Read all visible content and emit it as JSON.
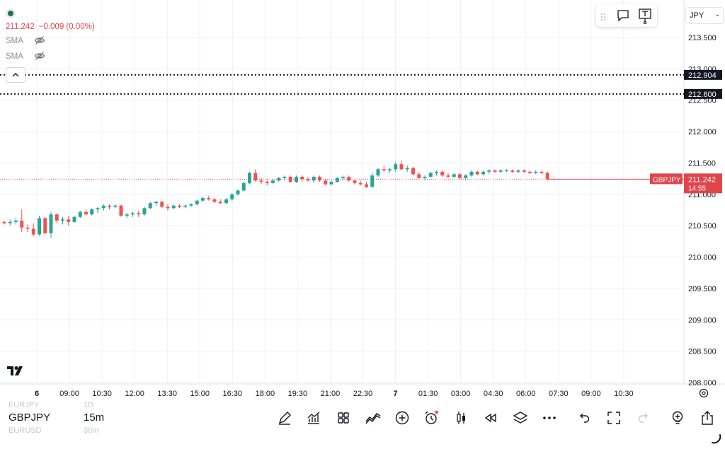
{
  "colors": {
    "up": "#26a69a",
    "down": "#ef5350",
    "price_line": "#e0454c",
    "dark_label": "#131722",
    "grid": "#eef0f3"
  },
  "legend": {
    "price": "211.242",
    "change": "−0.009 (0.00%)",
    "indicators": [
      {
        "label": "SMA",
        "icon": "eye-off-icon"
      },
      {
        "label": "SMA",
        "icon": "eye-off-icon"
      }
    ]
  },
  "top_toolbar": {
    "icons": [
      "drag-handle-icon",
      "comment-icon",
      "text-note-icon"
    ]
  },
  "currency": {
    "value": "JPY"
  },
  "price_axis": {
    "ticks": [
      "213.500",
      "213.000",
      "212.500",
      "212.000",
      "211.500",
      "211.000",
      "210.500",
      "210.000",
      "209.500",
      "209.000",
      "208.500",
      "208.000"
    ],
    "tick_values": [
      213.5,
      213.0,
      212.5,
      212.0,
      211.5,
      211.0,
      210.5,
      210.0,
      209.5,
      209.0,
      208.5,
      208.0
    ],
    "alert_levels": [
      {
        "label": "212.904",
        "value": 212.904
      },
      {
        "label": "212.600",
        "value": 212.6
      }
    ],
    "current": {
      "symbol": "GBPJPY",
      "price": "211.242",
      "countdown": "14:55",
      "value": 211.242
    }
  },
  "time_axis": {
    "labels": [
      "6",
      "09:00",
      "10:30",
      "12:00",
      "13:30",
      "15:00",
      "16:30",
      "18:00",
      "19:30",
      "21:00",
      "22:30",
      "7",
      "01:30",
      "03:00",
      "04:30",
      "06:00",
      "07:30",
      "09:00",
      "10:30"
    ]
  },
  "chart_data": {
    "type": "candlestick",
    "symbol": "GBPJPY",
    "interval": "15m",
    "ylim": [
      208.0,
      213.6
    ],
    "candles": [
      [
        210.56,
        210.58,
        210.52,
        210.54
      ],
      [
        210.54,
        210.6,
        210.5,
        210.56
      ],
      [
        210.56,
        210.62,
        210.52,
        210.58
      ],
      [
        210.58,
        210.76,
        210.4,
        210.47
      ],
      [
        210.47,
        210.52,
        210.4,
        210.45
      ],
      [
        210.45,
        210.54,
        210.33,
        210.36
      ],
      [
        210.36,
        210.66,
        210.34,
        210.62
      ],
      [
        210.62,
        210.64,
        210.36,
        210.38
      ],
      [
        210.38,
        210.72,
        210.3,
        210.68
      ],
      [
        210.68,
        210.7,
        210.54,
        210.58
      ],
      [
        210.58,
        210.64,
        210.52,
        210.6
      ],
      [
        210.6,
        210.66,
        210.5,
        210.56
      ],
      [
        210.56,
        210.66,
        210.54,
        210.64
      ],
      [
        210.64,
        210.74,
        210.62,
        210.72
      ],
      [
        210.72,
        210.76,
        210.66,
        210.68
      ],
      [
        210.68,
        210.78,
        210.66,
        210.76
      ],
      [
        210.76,
        210.8,
        210.7,
        210.78
      ],
      [
        210.78,
        210.84,
        210.74,
        210.82
      ],
      [
        210.82,
        210.84,
        210.76,
        210.8
      ],
      [
        210.8,
        210.84,
        210.78,
        210.82
      ],
      [
        210.82,
        210.84,
        210.64,
        210.66
      ],
      [
        210.66,
        210.7,
        210.62,
        210.68
      ],
      [
        210.68,
        210.72,
        210.64,
        210.7
      ],
      [
        210.7,
        210.74,
        210.64,
        210.68
      ],
      [
        210.68,
        210.8,
        210.66,
        210.78
      ],
      [
        210.78,
        210.88,
        210.76,
        210.86
      ],
      [
        210.86,
        210.9,
        210.82,
        210.88
      ],
      [
        210.88,
        210.9,
        210.78,
        210.8
      ],
      [
        210.8,
        210.84,
        210.74,
        210.78
      ],
      [
        210.78,
        210.84,
        210.76,
        210.82
      ],
      [
        210.82,
        210.84,
        210.78,
        210.8
      ],
      [
        210.8,
        210.84,
        210.78,
        210.82
      ],
      [
        210.82,
        210.86,
        210.8,
        210.84
      ],
      [
        210.84,
        210.92,
        210.82,
        210.9
      ],
      [
        210.9,
        210.96,
        210.88,
        210.94
      ],
      [
        210.94,
        210.98,
        210.9,
        210.92
      ],
      [
        210.92,
        210.94,
        210.86,
        210.88
      ],
      [
        210.88,
        210.92,
        210.84,
        210.86
      ],
      [
        210.86,
        210.94,
        210.84,
        210.92
      ],
      [
        210.92,
        211.02,
        210.9,
        211.0
      ],
      [
        211.0,
        211.08,
        210.98,
        211.06
      ],
      [
        211.06,
        211.2,
        211.04,
        211.18
      ],
      [
        211.18,
        211.36,
        211.16,
        211.34
      ],
      [
        211.34,
        211.4,
        211.2,
        211.22
      ],
      [
        211.22,
        211.26,
        211.16,
        211.2
      ],
      [
        211.2,
        211.24,
        211.14,
        211.18
      ],
      [
        211.18,
        211.24,
        211.16,
        211.22
      ],
      [
        211.22,
        211.28,
        211.2,
        211.26
      ],
      [
        211.26,
        211.3,
        211.22,
        211.28
      ],
      [
        211.28,
        211.3,
        211.18,
        211.2
      ],
      [
        211.2,
        211.3,
        211.18,
        211.28
      ],
      [
        211.28,
        211.3,
        211.2,
        211.24
      ],
      [
        211.24,
        211.28,
        211.2,
        211.22
      ],
      [
        211.22,
        211.3,
        211.18,
        211.28
      ],
      [
        211.28,
        211.3,
        211.2,
        211.22
      ],
      [
        211.22,
        211.24,
        211.14,
        211.16
      ],
      [
        211.16,
        211.22,
        211.14,
        211.2
      ],
      [
        211.2,
        211.28,
        211.18,
        211.26
      ],
      [
        211.26,
        211.3,
        211.22,
        211.28
      ],
      [
        211.28,
        211.3,
        211.2,
        211.22
      ],
      [
        211.22,
        211.24,
        211.16,
        211.18
      ],
      [
        211.18,
        211.22,
        211.14,
        211.16
      ],
      [
        211.16,
        211.2,
        211.1,
        211.12
      ],
      [
        211.12,
        211.34,
        211.1,
        211.3
      ],
      [
        211.3,
        211.42,
        211.28,
        211.4
      ],
      [
        211.4,
        211.46,
        211.36,
        211.38
      ],
      [
        211.38,
        211.42,
        211.34,
        211.4
      ],
      [
        211.4,
        211.52,
        211.36,
        211.48
      ],
      [
        211.48,
        211.54,
        211.38,
        211.4
      ],
      [
        211.4,
        211.46,
        211.36,
        211.42
      ],
      [
        211.42,
        211.44,
        211.3,
        211.32
      ],
      [
        211.32,
        211.36,
        211.24,
        211.26
      ],
      [
        211.26,
        211.3,
        211.22,
        211.28
      ],
      [
        211.28,
        211.36,
        211.26,
        211.34
      ],
      [
        211.34,
        211.38,
        211.3,
        211.36
      ],
      [
        211.36,
        211.38,
        211.28,
        211.3
      ],
      [
        211.3,
        211.34,
        211.26,
        211.28
      ],
      [
        211.28,
        211.34,
        211.26,
        211.32
      ],
      [
        211.32,
        211.34,
        211.24,
        211.26
      ],
      [
        211.26,
        211.32,
        211.22,
        211.3
      ],
      [
        211.3,
        211.38,
        211.28,
        211.36
      ],
      [
        211.36,
        211.38,
        211.3,
        211.32
      ],
      [
        211.32,
        211.38,
        211.3,
        211.36
      ],
      [
        211.36,
        211.4,
        211.32,
        211.38
      ],
      [
        211.38,
        211.4,
        211.34,
        211.36
      ],
      [
        211.36,
        211.4,
        211.34,
        211.38
      ],
      [
        211.38,
        211.4,
        211.36,
        211.38
      ],
      [
        211.38,
        211.4,
        211.34,
        211.36
      ],
      [
        211.36,
        211.4,
        211.34,
        211.38
      ],
      [
        211.38,
        211.4,
        211.34,
        211.36
      ],
      [
        211.36,
        211.38,
        211.32,
        211.34
      ],
      [
        211.34,
        211.38,
        211.32,
        211.36
      ],
      [
        211.36,
        211.38,
        211.32,
        211.34
      ],
      [
        211.34,
        211.36,
        211.22,
        211.242
      ]
    ]
  },
  "bottom_bar": {
    "symbols": {
      "prev": "EURJPY",
      "current": "GBPJPY",
      "next": "EURUSD"
    },
    "intervals": {
      "prev": "1D",
      "current": "15m",
      "next": "30m"
    },
    "tools": [
      "pen-draw-icon",
      "indicators-icon",
      "layouts-icon",
      "strategy-icon",
      "add-icon",
      "alert-icon",
      "candle-style-icon",
      "replay-icon",
      "layers-icon",
      "more-icon",
      "undo-icon",
      "fullscreen-icon",
      "redo-icon",
      "idea-icon",
      "share-icon"
    ]
  }
}
